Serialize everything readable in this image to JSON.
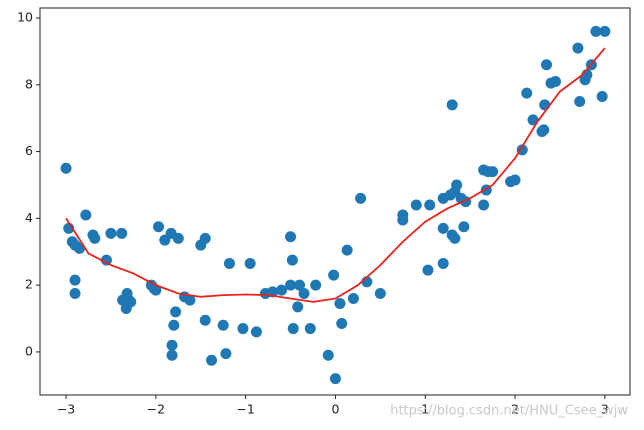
{
  "chart_data": {
    "type": "scatter",
    "xlim": [
      -3.29,
      3.28
    ],
    "ylim": [
      -1.29,
      10.3
    ],
    "xticks": [
      {
        "value": -3,
        "label": "−3"
      },
      {
        "value": -2,
        "label": "−2"
      },
      {
        "value": -1,
        "label": "−1"
      },
      0,
      1,
      2,
      3
    ],
    "yticks": [
      0,
      2,
      4,
      6,
      8,
      10
    ],
    "points": {
      "color": "#1f77b4",
      "x": [
        -3.0,
        -2.97,
        -2.93,
        -2.9,
        -2.9,
        -2.9,
        -2.85,
        -2.78,
        -2.7,
        -2.68,
        -2.55,
        -2.5,
        -2.38,
        -2.37,
        -2.33,
        -2.32,
        -2.3,
        -2.28,
        -2.05,
        -2.02,
        -2.0,
        -1.97,
        -1.9,
        -1.83,
        -1.82,
        -1.82,
        -1.8,
        -1.78,
        -1.75,
        -1.68,
        -1.62,
        -1.5,
        -1.45,
        -1.45,
        -1.38,
        -1.25,
        -1.22,
        -1.18,
        -1.03,
        -0.95,
        -0.88,
        -0.78,
        -0.7,
        -0.6,
        -0.5,
        -0.5,
        -0.48,
        -0.47,
        -0.42,
        -0.4,
        -0.35,
        -0.28,
        -0.22,
        -0.08,
        -0.02,
        0.0,
        0.05,
        0.07,
        0.13,
        0.2,
        0.28,
        0.35,
        0.5,
        0.75,
        0.75,
        0.9,
        1.03,
        1.05,
        1.2,
        1.2,
        1.2,
        1.28,
        1.3,
        1.3,
        1.33,
        1.33,
        1.35,
        1.4,
        1.43,
        1.45,
        1.65,
        1.65,
        1.68,
        1.7,
        1.75,
        1.95,
        2.0,
        2.08,
        2.13,
        2.2,
        2.3,
        2.32,
        2.33,
        2.35,
        2.4,
        2.45,
        2.7,
        2.72,
        2.78,
        2.8,
        2.85,
        2.9,
        2.97,
        3.0
      ],
      "y": [
        5.5,
        3.7,
        3.3,
        3.2,
        2.15,
        1.75,
        3.1,
        4.1,
        3.5,
        3.4,
        2.75,
        3.55,
        3.55,
        1.55,
        1.3,
        1.75,
        1.55,
        1.5,
        2.0,
        1.9,
        1.85,
        3.75,
        3.35,
        3.55,
        0.2,
        -0.1,
        0.8,
        1.2,
        3.4,
        1.65,
        1.55,
        3.2,
        3.4,
        0.95,
        -0.25,
        0.8,
        -0.05,
        2.65,
        0.7,
        2.65,
        0.6,
        1.75,
        1.8,
        1.85,
        2.0,
        3.45,
        2.75,
        0.7,
        1.35,
        2.0,
        1.75,
        0.7,
        2.0,
        -0.1,
        2.3,
        -0.8,
        1.45,
        0.85,
        3.05,
        1.6,
        4.6,
        2.1,
        1.75,
        3.95,
        4.1,
        4.4,
        2.45,
        4.4,
        4.6,
        3.7,
        2.65,
        4.7,
        7.4,
        3.5,
        3.4,
        4.8,
        5.0,
        4.6,
        3.75,
        4.5,
        5.45,
        4.4,
        4.85,
        5.4,
        5.4,
        5.1,
        5.15,
        6.05,
        7.75,
        6.95,
        6.6,
        6.65,
        7.4,
        8.6,
        8.05,
        8.1,
        9.1,
        7.5,
        8.15,
        8.3,
        8.6,
        9.6,
        7.65,
        9.6
      ]
    },
    "curve": {
      "color": "#e8221c",
      "x": [
        -3,
        -2.75,
        -2.5,
        -2.25,
        -2,
        -1.75,
        -1.5,
        -1.25,
        -1,
        -0.75,
        -0.5,
        -0.25,
        0,
        0.25,
        0.5,
        0.75,
        1,
        1.25,
        1.5,
        1.75,
        2,
        2.25,
        2.5,
        2.75,
        3
      ],
      "y": [
        4.0,
        2.95,
        2.6,
        2.35,
        2.0,
        1.75,
        1.65,
        1.7,
        1.72,
        1.7,
        1.6,
        1.5,
        1.6,
        2.0,
        2.6,
        3.3,
        3.9,
        4.3,
        4.6,
        5.0,
        5.8,
        6.9,
        7.8,
        8.3,
        9.1
      ]
    },
    "watermark": "https://blog.csdn.net/HNU_Csee_wjw"
  }
}
